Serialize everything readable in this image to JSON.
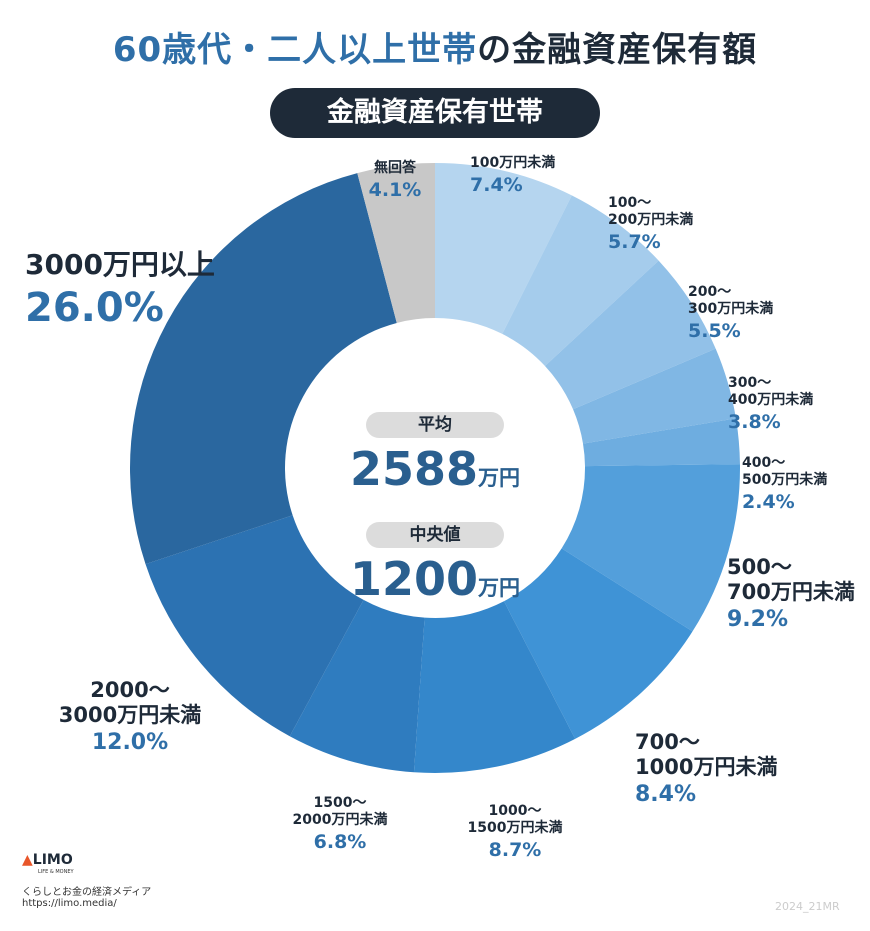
{
  "chart_data": {
    "type": "donut",
    "title": {
      "highlight": "60歳代・二人以上世帯",
      "rest": "の金融資産保有額"
    },
    "subtitle": "金融資産保有世帯",
    "categories": [
      "100万円未満",
      "100～\n200万円未満",
      "200～\n300万円未満",
      "300～\n400万円未満",
      "400～\n500万円未満",
      "500～\n700万円未満",
      "700～\n1000万円未満",
      "1000～\n1500万円未満",
      "1500～\n2000万円未満",
      "2000～\n3000万円未満",
      "3000万円以上",
      "無回答"
    ],
    "values": [
      7.4,
      5.7,
      5.5,
      3.8,
      2.4,
      9.2,
      8.4,
      8.7,
      6.8,
      12.0,
      26.0,
      4.1
    ],
    "value_labels": [
      "7.4%",
      "5.7%",
      "5.5%",
      "3.8%",
      "2.4%",
      "9.2%",
      "8.4%",
      "8.7%",
      "6.8%",
      "12.0%",
      "26.0%",
      "4.1%"
    ],
    "colors": [
      "#b5d5ef",
      "#a5ccec",
      "#92c1e8",
      "#80b7e4",
      "#6eade0",
      "#539fdb",
      "#3f93d6",
      "#3487cb",
      "#2f7cbf",
      "#2c72b2",
      "#2a679f",
      "#c8c8c8"
    ],
    "center": [
      {
        "label": "平均",
        "value": 2588,
        "unit": "万円"
      },
      {
        "label": "中央値",
        "value": 1200,
        "unit": "万円"
      }
    ]
  },
  "footer": {
    "logo": "LIMO",
    "logo_sub": "LIFE & MONEY",
    "tagline": "くらしとお金の経済メディア",
    "url": "https://limo.media/",
    "code": "2024_21MR"
  }
}
